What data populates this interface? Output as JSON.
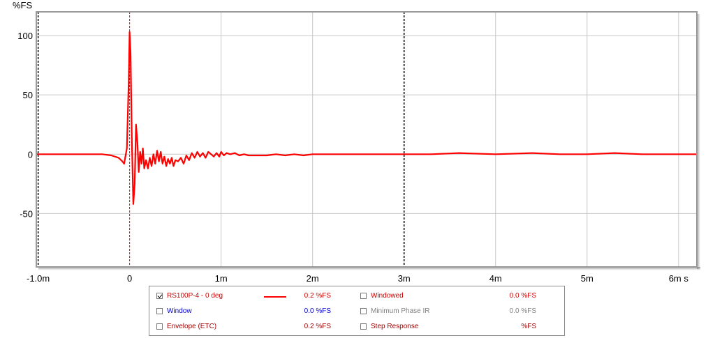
{
  "colors": {
    "trace": "#ff0000",
    "grid": "#c8c8c8",
    "marker": "#000000",
    "cursor": "#cc0000",
    "frame": "#9a9a9a",
    "label_red": "#cc0000",
    "label_blue": "#0000cc",
    "label_dark_red": "#990000",
    "label_gray": "#808080"
  },
  "chart_data": {
    "type": "line",
    "title": "",
    "ylabel": "%FS",
    "xunit": "s",
    "xlim": [
      -1.02,
      6.2
    ],
    "ylim": [
      -95,
      120
    ],
    "grid": true,
    "x_ticks": [
      {
        "value": -1.0,
        "label": "-1.0m"
      },
      {
        "value": 0,
        "label": "0"
      },
      {
        "value": 1,
        "label": "1m"
      },
      {
        "value": 2,
        "label": "2m"
      },
      {
        "value": 3,
        "label": "3m"
      },
      {
        "value": 4,
        "label": "4m"
      },
      {
        "value": 5,
        "label": "5m"
      },
      {
        "value": 6,
        "label": "6m s"
      }
    ],
    "y_ticks": [
      {
        "value": 100,
        "label": "100"
      },
      {
        "value": 50,
        "label": "50"
      },
      {
        "value": 0,
        "label": "0"
      },
      {
        "value": -50,
        "label": "-50"
      }
    ],
    "markers": [
      -1.0,
      3.0
    ],
    "cursor": 0.0,
    "series": [
      {
        "name": "RS100P-4 - 0 deg",
        "x": [
          -1.02,
          -0.5,
          -0.3,
          -0.2,
          -0.12,
          -0.08,
          -0.06,
          -0.03,
          -0.01,
          0.0,
          0.01,
          0.025,
          0.04,
          0.055,
          0.07,
          0.085,
          0.1,
          0.115,
          0.13,
          0.145,
          0.16,
          0.18,
          0.2,
          0.22,
          0.24,
          0.26,
          0.28,
          0.3,
          0.32,
          0.34,
          0.36,
          0.38,
          0.4,
          0.42,
          0.44,
          0.46,
          0.48,
          0.5,
          0.53,
          0.56,
          0.59,
          0.62,
          0.65,
          0.68,
          0.71,
          0.74,
          0.77,
          0.8,
          0.83,
          0.86,
          0.89,
          0.92,
          0.95,
          0.98,
          1.0,
          1.03,
          1.06,
          1.1,
          1.15,
          1.2,
          1.25,
          1.3,
          1.4,
          1.5,
          1.6,
          1.7,
          1.8,
          1.9,
          2.0,
          2.2,
          2.4,
          2.6,
          2.8,
          3.0,
          3.3,
          3.6,
          4.0,
          4.4,
          4.7,
          5.0,
          5.3,
          5.6,
          5.9,
          6.2
        ],
        "y": [
          0,
          0,
          0,
          -1,
          -3,
          -6,
          -8,
          5,
          60,
          103,
          85,
          10,
          -42,
          -25,
          25,
          10,
          -15,
          2,
          -8,
          5,
          -12,
          -5,
          -12,
          -3,
          -10,
          0,
          -8,
          3,
          -6,
          2,
          -8,
          -2,
          -10,
          -4,
          -8,
          -3,
          -10,
          -5,
          -6,
          -3,
          -8,
          -1,
          -5,
          1,
          -3,
          2,
          -2,
          1,
          -3,
          2,
          0,
          -2,
          1,
          -2,
          2,
          -1,
          1,
          0,
          1,
          -1,
          0,
          -1,
          -1,
          -1,
          0,
          -1,
          0,
          -1,
          0,
          0,
          0,
          0,
          0,
          0,
          0,
          1,
          0,
          1,
          0,
          0,
          1,
          0,
          0,
          0
        ]
      }
    ]
  },
  "legend": {
    "rows": [
      [
        {
          "checked": true,
          "label": "RS100P-4 - 0 deg",
          "value": "0.2 %FS",
          "color": "#cc0000",
          "has_swatch": true
        },
        {
          "checked": false,
          "label": "Windowed",
          "value": "0.0 %FS",
          "color": "#cc0000"
        }
      ],
      [
        {
          "checked": false,
          "label": "Window",
          "value": "0.0 %FS",
          "color": "#0000cc"
        },
        {
          "checked": false,
          "label": "Minimum Phase IR",
          "value": "0.0 %FS",
          "color": "#808080"
        }
      ],
      [
        {
          "checked": false,
          "label": "Envelope (ETC)",
          "value": "0.2 %FS",
          "color": "#990000"
        },
        {
          "checked": false,
          "label": "Step Response",
          "value": "%FS",
          "color": "#990000"
        }
      ]
    ]
  }
}
